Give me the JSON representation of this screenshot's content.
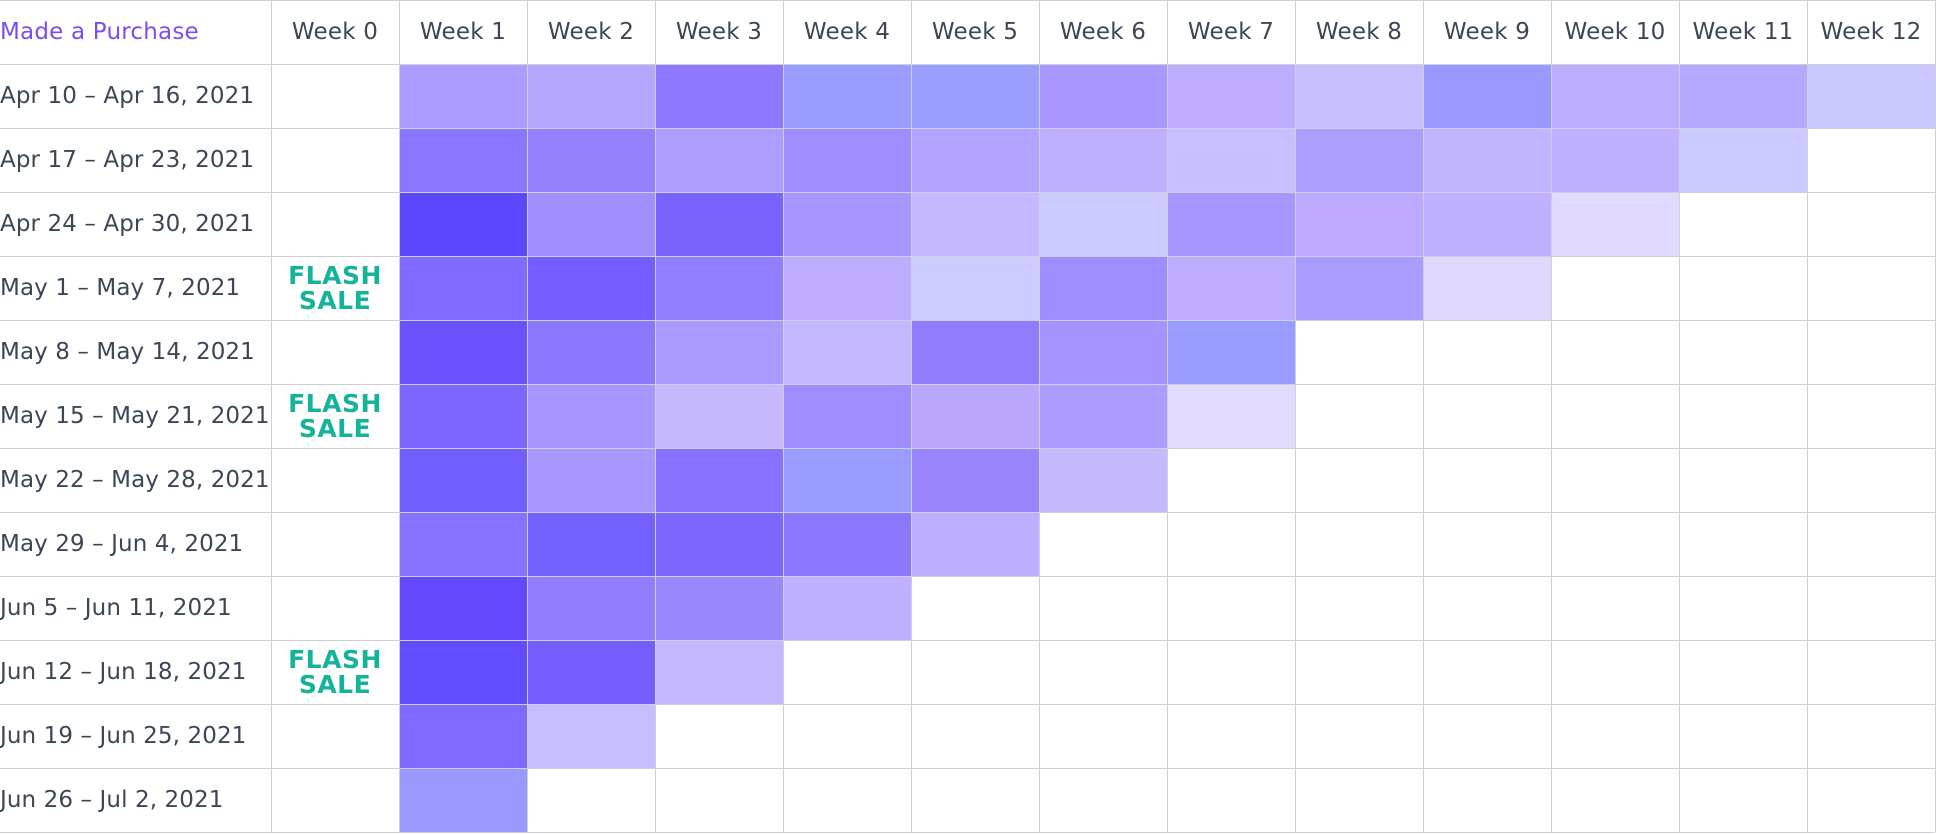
{
  "table": {
    "corner_label": "Made a Purchase",
    "week_headers": [
      "Week 0",
      "Week 1",
      "Week 2",
      "Week 3",
      "Week 4",
      "Week 5",
      "Week 6",
      "Week 7",
      "Week 8",
      "Week 9",
      "Week 10",
      "Week 11",
      "Week 12"
    ],
    "rows": [
      {
        "label": "Apr 10 – Apr 16, 2021",
        "flash_sale": false,
        "cells": [
          "#ad9cff",
          "#b5a6fe",
          "#8d78ff",
          "#9a9dff",
          "#999eff",
          "#aa98ff",
          "#bfacff",
          "#c7befe",
          "#9898ff",
          "#beadff",
          "#b5a8ff",
          "#cbc8ff"
        ]
      },
      {
        "label": "Apr 17 – Apr 23, 2021",
        "flash_sale": false,
        "cells": [
          "#8a76ff",
          "#9581fe",
          "#ae9cff",
          "#9f8dff",
          "#b3a2ff",
          "#c0aeff",
          "#c7bfff",
          "#aa9eff",
          "#c1b5ff",
          "#c1b0ff",
          "#cbc9ff"
        ]
      },
      {
        "label": "Apr 24 – Apr 30, 2021",
        "flash_sale": false,
        "cells": [
          "#5c47ff",
          "#a18ffe",
          "#7a62ff",
          "#a895fe",
          "#c6b7ff",
          "#ccc9ff",
          "#a896ff",
          "#bda9ff",
          "#c0b0ff",
          "#e2d9ff"
        ]
      },
      {
        "label": "May 1 – May 7, 2021",
        "flash_sale": true,
        "cells": [
          "#7f6bff",
          "#745eff",
          "#917fff",
          "#bfacff",
          "#cdcbff",
          "#9e8dff",
          "#bfacff",
          "#aa9bff",
          "#e1d7ff"
        ]
      },
      {
        "label": "May 8 – May 14, 2021",
        "flash_sale": false,
        "cells": [
          "#6a52ff",
          "#8b76fe",
          "#aa9afe",
          "#c4b5ff",
          "#917cfe",
          "#a593ff",
          "#989bff"
        ]
      },
      {
        "label": "May 15 – May 21, 2021",
        "flash_sale": true,
        "cells": [
          "#7b66ff",
          "#a896fe",
          "#c8b9fe",
          "#9f8cfe",
          "#bba7fe",
          "#ad9bfe",
          "#e3dbfe"
        ]
      },
      {
        "label": "May 22 – May 28, 2021",
        "flash_sale": false,
        "cells": [
          "#735eff",
          "#a997fe",
          "#8871fe",
          "#999cfe",
          "#9a85fe",
          "#c6b9fe"
        ]
      },
      {
        "label": "May 29 – Jun 4, 2021",
        "flash_sale": false,
        "cells": [
          "#8672ff",
          "#7561fe",
          "#7d66fe",
          "#8b76fe",
          "#bfaefe"
        ]
      },
      {
        "label": "Jun 5 – Jun 11, 2021",
        "flash_sale": false,
        "cells": [
          "#6248ff",
          "#917dfe",
          "#9a88fe",
          "#c1afff"
        ]
      },
      {
        "label": "Jun 12 – Jun 18, 2021",
        "flash_sale": true,
        "cells": [
          "#634cff",
          "#745efe",
          "#c4b5fe"
        ]
      },
      {
        "label": "Jun 19 – Jun 25, 2021",
        "flash_sale": false,
        "cells": [
          "#7f69ff",
          "#c6bdfe"
        ]
      },
      {
        "label": "Jun 26 – Jul 2, 2021",
        "flash_sale": false,
        "cells": [
          "#9999ff"
        ]
      }
    ],
    "flash_sale_label": [
      "FLASH",
      "SALE"
    ]
  },
  "colors": {
    "accent": "#7b4cf0",
    "flash_sale": "#16b39a",
    "grid": "#cfcfd6",
    "text": "#3b4656"
  }
}
